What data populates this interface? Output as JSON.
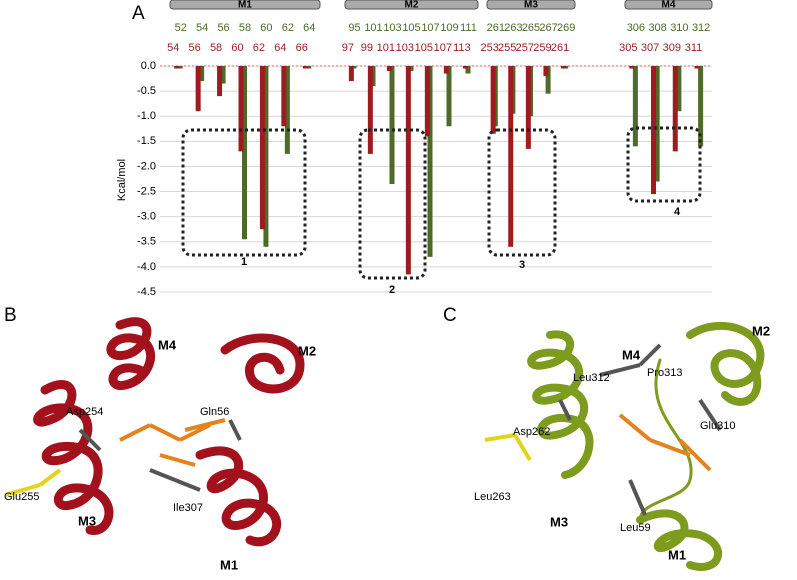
{
  "panels": {
    "a": "A",
    "b": "B",
    "c": "C"
  },
  "chart_data": {
    "type": "bar",
    "ylabel": "Kcal/mol",
    "ylim": [
      -4.5,
      0
    ],
    "yticks": [
      {
        "value": 0,
        "label": "0.0"
      },
      -0.5,
      {
        "value": -1,
        "label": "-1.0"
      },
      -1.5,
      {
        "value": -2,
        "label": "-2.0"
      },
      -2.5,
      {
        "value": -3,
        "label": "-3.0"
      },
      -3.5,
      {
        "value": -4,
        "label": "-4.0"
      },
      -4.5
    ],
    "grid": true,
    "groups": [
      "M1",
      "M2",
      "M3",
      "M4"
    ],
    "series": [
      {
        "color": "#4d6a2a",
        "categories": [
          [
            "52",
            "54",
            "56",
            "58",
            "60",
            "62",
            "64"
          ],
          [
            "95",
            "101",
            "103",
            "105",
            "107",
            "109",
            "111"
          ],
          [
            "261",
            "263",
            "265",
            "267",
            "269"
          ],
          [
            "306",
            "308",
            "310",
            "312"
          ]
        ],
        "values": [
          [
            -0.05,
            -0.3,
            -0.35,
            -3.45,
            -3.6,
            -1.75,
            -0.05
          ],
          [
            -0.05,
            -0.4,
            -2.35,
            -0.1,
            -3.8,
            -1.2,
            -0.15
          ],
          [
            -1.2,
            -0.95,
            -1.0,
            -0.55,
            -0.05
          ],
          [
            -1.6,
            -2.3,
            -0.9,
            -1.6
          ]
        ]
      },
      {
        "color": "#9e1b1f",
        "categories": [
          [
            "54",
            "56",
            "58",
            "60",
            "62",
            "64",
            "66"
          ],
          [
            "97",
            "99",
            "101",
            "103",
            "105",
            "107",
            "113"
          ],
          [
            "253",
            "255",
            "257",
            "259",
            "261"
          ],
          [
            "305",
            "307",
            "309",
            "311"
          ]
        ],
        "values": [
          [
            -0.05,
            -0.9,
            -0.6,
            -1.7,
            -3.25,
            -1.2,
            -0.05
          ],
          [
            -0.3,
            -1.75,
            -0.1,
            -4.15,
            -1.4,
            -0.15,
            -0.05
          ],
          [
            -1.35,
            -3.6,
            -1.65,
            -0.2,
            -0.05
          ],
          [
            -0.05,
            -2.55,
            -1.7,
            -0.05
          ]
        ]
      }
    ],
    "annotations": [
      "1",
      "2",
      "3",
      "4"
    ]
  },
  "structure_b": {
    "labels": [
      "M4",
      "M2",
      "Asp254",
      "Gln56",
      "Glu255",
      "M3",
      "Ile307",
      "M1"
    ]
  },
  "structure_c": {
    "labels": [
      "M4",
      "Pro313",
      "M2",
      "Leu312",
      "Asp262",
      "Glu310",
      "Leu263",
      "M3",
      "Leu59",
      "M1"
    ]
  }
}
